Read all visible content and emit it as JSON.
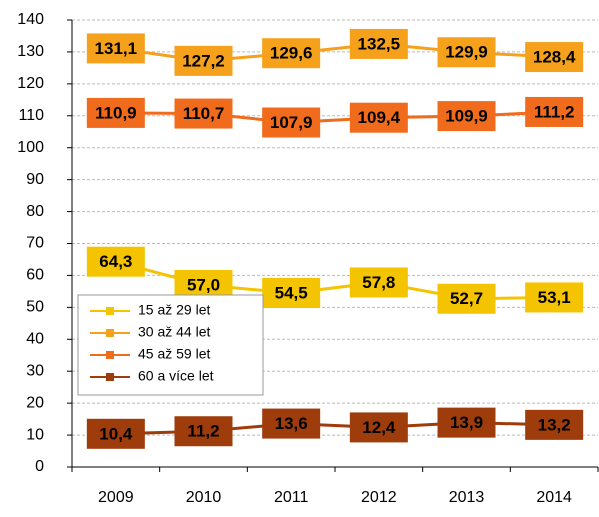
{
  "chart_data": {
    "type": "line",
    "categories": [
      "2009",
      "2010",
      "2011",
      "2012",
      "2013",
      "2014"
    ],
    "series": [
      {
        "name": "15 až 29 let",
        "color": "#f5c400",
        "values": [
          64.3,
          57.0,
          54.5,
          57.8,
          52.7,
          53.1
        ],
        "value_labels": [
          "64,3",
          "57,0",
          "54,5",
          "57,8",
          "52,7",
          "53,1"
        ]
      },
      {
        "name": "30 až 44 let",
        "color": "#f5a11c",
        "values": [
          131.1,
          127.2,
          129.6,
          132.5,
          129.9,
          128.4
        ],
        "value_labels": [
          "131,1",
          "127,2",
          "129,6",
          "132,5",
          "129,9",
          "128,4"
        ]
      },
      {
        "name": "45 až 59 let",
        "color": "#f06c1c",
        "values": [
          110.9,
          110.7,
          107.9,
          109.4,
          109.9,
          111.2
        ],
        "value_labels": [
          "110,9",
          "110,7",
          "107,9",
          "109,4",
          "109,9",
          "111,2"
        ]
      },
      {
        "name": "60 a více let",
        "color": "#9e3c0c",
        "values": [
          10.4,
          11.2,
          13.6,
          12.4,
          13.9,
          13.2
        ],
        "value_labels": [
          "10,4",
          "11,2",
          "13,6",
          "12,4",
          "13,9",
          "13,2"
        ]
      }
    ],
    "ylim": [
      0,
      140
    ],
    "yticks": [
      0,
      10,
      20,
      30,
      40,
      50,
      60,
      70,
      80,
      90,
      100,
      110,
      120,
      130,
      140
    ],
    "grid": true,
    "legend": "left"
  }
}
